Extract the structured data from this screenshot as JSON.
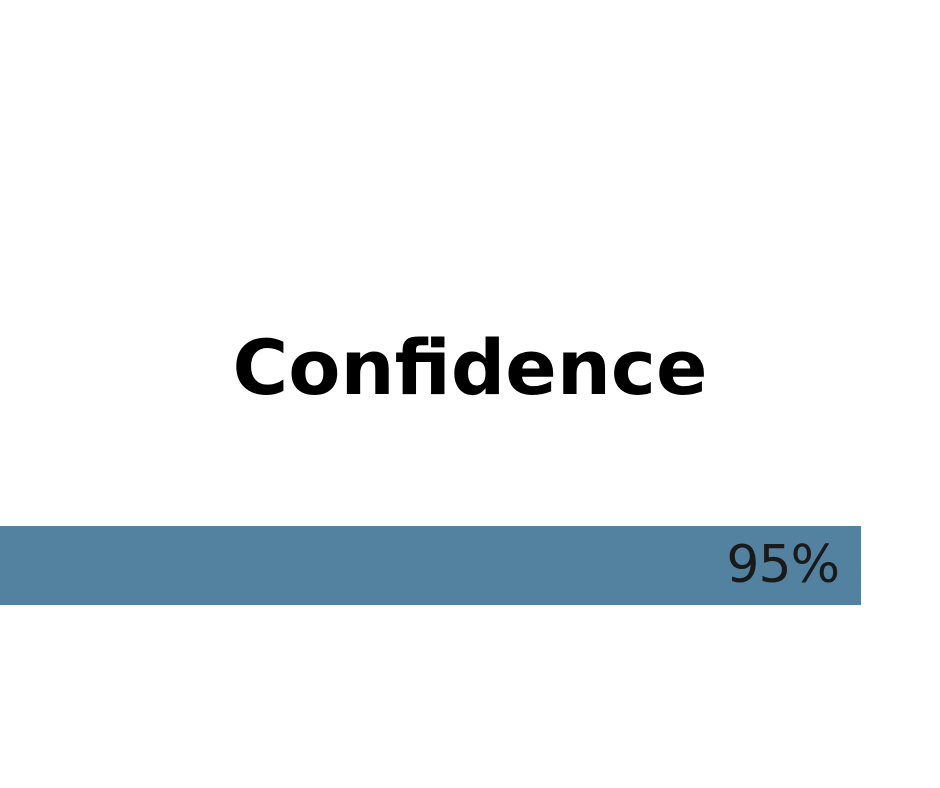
{
  "title": "Confidence",
  "progress": {
    "value_percent": 95,
    "label": "95%",
    "fill_color": "#5381a0",
    "label_color": "#1a1a1a"
  }
}
